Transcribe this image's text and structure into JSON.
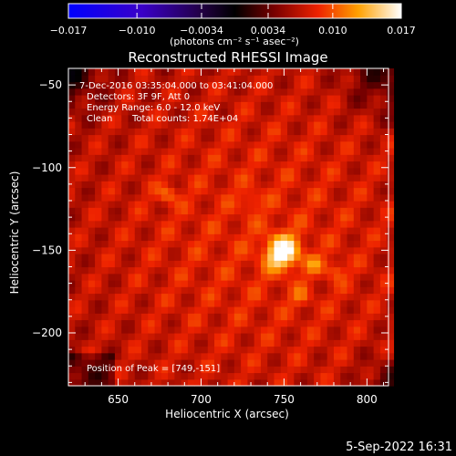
{
  "chart_data": {
    "type": "heatmap",
    "title": "Reconstructed RHESSI Image",
    "xlabel": "Heliocentric X (arcsec)",
    "ylabel": "Heliocentric Y (arcsec)",
    "xlim": [
      620,
      813
    ],
    "ylim": [
      -232,
      -40
    ],
    "x_ticks": [
      650,
      700,
      750,
      800
    ],
    "y_ticks": [
      -50,
      -100,
      -150,
      -200
    ],
    "x_tick_labels": [
      "650",
      "700",
      "750",
      "800"
    ],
    "y_tick_labels": [
      "−50",
      "−100",
      "−150",
      "−200"
    ],
    "colorbar": {
      "range": [
        -0.017,
        0.017
      ],
      "ticks": [
        -0.017,
        -0.01,
        -0.0034,
        0.0034,
        0.01,
        0.017
      ],
      "tick_labels": [
        "−0.017",
        "−0.010",
        "−0.0034",
        "0.0034",
        "0.010",
        "0.017"
      ],
      "units_label": "(photons cm⁻² s⁻¹ asec⁻²)"
    },
    "annotations": {
      "time_range": "7-Dec-2016 03:35:04.000 to 03:41:04.000",
      "detectors": "Detectors: 3F 9F, Att 0",
      "energy": "Energy Range: 6.0 - 12.0 keV",
      "method": "Clean",
      "total_counts": "Total counts: 1.74E+04",
      "peak": "Position of Peak = [749,-151]"
    },
    "peak_position": [
      749,
      -151
    ],
    "peak_value": 0.017,
    "sources": [
      {
        "x": 749,
        "y": -151,
        "amplitude": 0.017
      },
      {
        "x": 680,
        "y": -116,
        "amplitude": 0.006
      },
      {
        "x": 768,
        "y": -158,
        "amplitude": 0.005
      },
      {
        "x": 781,
        "y": -162,
        "amplitude": 0.005
      },
      {
        "x": 730,
        "y": -120,
        "amplitude": 0.004
      },
      {
        "x": 760,
        "y": -178,
        "amplitude": 0.004
      }
    ],
    "background_level": 0.0075
  },
  "footer": {
    "timestamp": "5-Sep-2022 16:31"
  }
}
